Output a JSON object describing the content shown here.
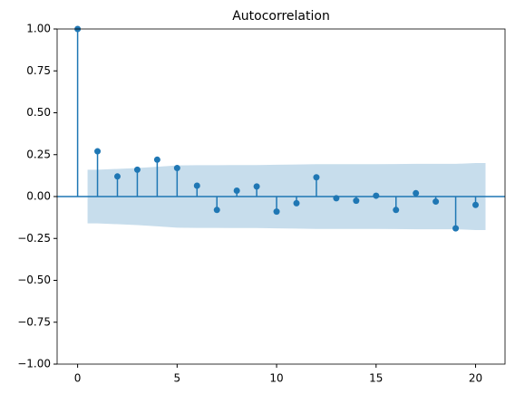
{
  "chart_data": {
    "type": "stem",
    "title": "Autocorrelation",
    "color": "#1f77b4",
    "band_color": "#1f77b4",
    "x": [
      0,
      1,
      2,
      3,
      4,
      5,
      6,
      7,
      8,
      9,
      10,
      11,
      12,
      13,
      14,
      15,
      16,
      17,
      18,
      19,
      20
    ],
    "values": [
      1.0,
      0.27,
      0.12,
      0.16,
      0.22,
      0.17,
      0.065,
      -0.08,
      0.035,
      0.06,
      -0.09,
      -0.04,
      0.115,
      -0.01,
      -0.025,
      0.005,
      -0.08,
      0.02,
      -0.03,
      -0.19,
      -0.05
    ],
    "band": {
      "x": [
        0.5,
        1,
        2,
        3,
        4,
        5,
        6,
        7,
        8,
        9,
        10,
        11,
        12,
        13,
        14,
        15,
        16,
        17,
        18,
        19,
        20,
        20.5
      ],
      "upper": [
        0.16,
        0.16,
        0.165,
        0.17,
        0.178,
        0.186,
        0.187,
        0.187,
        0.188,
        0.188,
        0.19,
        0.191,
        0.193,
        0.193,
        0.193,
        0.193,
        0.194,
        0.195,
        0.195,
        0.195,
        0.2,
        0.2
      ],
      "lower": [
        -0.16,
        -0.16,
        -0.165,
        -0.17,
        -0.178,
        -0.186,
        -0.187,
        -0.187,
        -0.188,
        -0.188,
        -0.19,
        -0.191,
        -0.193,
        -0.193,
        -0.193,
        -0.193,
        -0.194,
        -0.195,
        -0.195,
        -0.195,
        -0.2,
        -0.2
      ]
    },
    "xlim": [
      -1.03,
      21.48
    ],
    "ylim": [
      -1,
      1
    ],
    "xticks": [
      0,
      5,
      10,
      15,
      20
    ],
    "yticks": [
      {
        "value": -1,
        "label": "−1.00"
      },
      {
        "value": -0.75,
        "label": "−0.75"
      },
      {
        "value": -0.5,
        "label": "−0.50"
      },
      {
        "value": -0.25,
        "label": "−0.25"
      },
      {
        "value": 0,
        "label": "0.00"
      },
      {
        "value": 0.25,
        "label": "0.25"
      },
      {
        "value": 0.5,
        "label": "0.50"
      },
      {
        "value": 0.75,
        "label": "0.75"
      },
      {
        "value": 1,
        "label": "1.00"
      }
    ]
  }
}
